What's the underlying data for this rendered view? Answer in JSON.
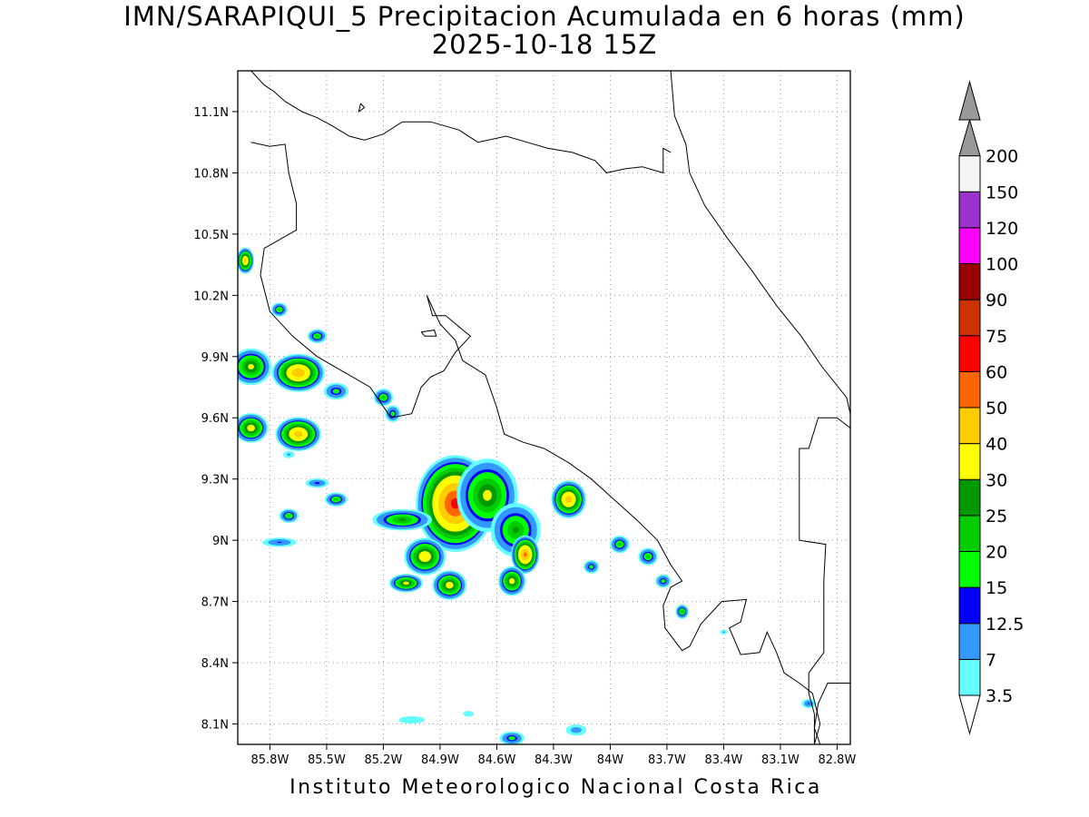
{
  "title": {
    "line1": "IMN/SARAPIQUI_5 Precipitacion Acumulada en 6 horas (mm)",
    "line2": "2025-10-18 15Z"
  },
  "footer": "Instituto Meteorologico Nacional Costa Rica",
  "axes": {
    "x_ticks": [
      "85.8W",
      "85.5W",
      "85.2W",
      "84.9W",
      "84.6W",
      "84.3W",
      "84W",
      "83.7W",
      "83.4W",
      "83.1W",
      "82.8W"
    ],
    "y_ticks": [
      "11.1N",
      "10.8N",
      "10.5N",
      "10.2N",
      "9.9N",
      "9.6N",
      "9.3N",
      "9N",
      "8.7N",
      "8.4N",
      "8.1N"
    ],
    "lon_range": [
      -85.97,
      -82.73
    ],
    "lat_range": [
      8.0,
      11.3
    ],
    "grid": "dotted"
  },
  "colorbar": {
    "labels": [
      "3.5",
      "7",
      "12.5",
      "15",
      "20",
      "25",
      "30",
      "40",
      "50",
      "60",
      "75",
      "90",
      "100",
      "120",
      "150",
      "200"
    ],
    "colors": [
      "#66ffff",
      "#3399ff",
      "#0000ff",
      "#00ff00",
      "#00cc00",
      "#009900",
      "#ffff00",
      "#ffcc00",
      "#ff6600",
      "#ff0000",
      "#cc3300",
      "#990000",
      "#ff00ff",
      "#9933cc",
      "#f5f5f5",
      "#999999"
    ],
    "units": "mm"
  },
  "precip_cells": [
    {
      "lon": -84.82,
      "lat": 9.18,
      "rx": 0.22,
      "ry": 0.25,
      "peak": 62
    },
    {
      "lon": -84.65,
      "lat": 9.22,
      "rx": 0.18,
      "ry": 0.2,
      "peak": 32
    },
    {
      "lon": -84.5,
      "lat": 9.05,
      "rx": 0.15,
      "ry": 0.15,
      "peak": 26
    },
    {
      "lon": -84.45,
      "lat": 8.93,
      "rx": 0.08,
      "ry": 0.1,
      "peak": 52
    },
    {
      "lon": -84.22,
      "lat": 9.2,
      "rx": 0.1,
      "ry": 0.1,
      "peak": 45
    },
    {
      "lon": -85.1,
      "lat": 9.1,
      "rx": 0.18,
      "ry": 0.06,
      "peak": 26
    },
    {
      "lon": -84.98,
      "lat": 8.92,
      "rx": 0.12,
      "ry": 0.1,
      "peak": 38
    },
    {
      "lon": -84.85,
      "lat": 8.78,
      "rx": 0.1,
      "ry": 0.08,
      "peak": 35
    },
    {
      "lon": -85.08,
      "lat": 8.79,
      "rx": 0.1,
      "ry": 0.05,
      "peak": 33
    },
    {
      "lon": -84.52,
      "lat": 8.8,
      "rx": 0.08,
      "ry": 0.08,
      "peak": 34
    },
    {
      "lon": -85.65,
      "lat": 9.82,
      "rx": 0.15,
      "ry": 0.1,
      "peak": 48
    },
    {
      "lon": -85.9,
      "lat": 9.85,
      "rx": 0.12,
      "ry": 0.1,
      "peak": 32
    },
    {
      "lon": -85.65,
      "lat": 9.52,
      "rx": 0.13,
      "ry": 0.09,
      "peak": 45
    },
    {
      "lon": -85.9,
      "lat": 9.55,
      "rx": 0.1,
      "ry": 0.08,
      "peak": 35
    },
    {
      "lon": -85.93,
      "lat": 10.37,
      "rx": 0.05,
      "ry": 0.07,
      "peak": 42
    },
    {
      "lon": -85.75,
      "lat": 10.13,
      "rx": 0.05,
      "ry": 0.04,
      "peak": 22
    },
    {
      "lon": -85.55,
      "lat": 10.0,
      "rx": 0.06,
      "ry": 0.04,
      "peak": 22
    },
    {
      "lon": -85.45,
      "lat": 9.73,
      "rx": 0.08,
      "ry": 0.05,
      "peak": 18
    },
    {
      "lon": -85.2,
      "lat": 9.7,
      "rx": 0.06,
      "ry": 0.05,
      "peak": 22
    },
    {
      "lon": -85.15,
      "lat": 9.62,
      "rx": 0.05,
      "ry": 0.05,
      "peak": 18
    },
    {
      "lon": -85.45,
      "lat": 9.2,
      "rx": 0.07,
      "ry": 0.04,
      "peak": 22
    },
    {
      "lon": -85.7,
      "lat": 9.12,
      "rx": 0.06,
      "ry": 0.04,
      "peak": 22
    },
    {
      "lon": -85.55,
      "lat": 9.28,
      "rx": 0.08,
      "ry": 0.03,
      "peak": 14
    },
    {
      "lon": -85.75,
      "lat": 8.99,
      "rx": 0.12,
      "ry": 0.03,
      "peak": 13
    },
    {
      "lon": -83.95,
      "lat": 8.98,
      "rx": 0.06,
      "ry": 0.05,
      "peak": 22
    },
    {
      "lon": -84.1,
      "lat": 8.87,
      "rx": 0.05,
      "ry": 0.04,
      "peak": 18
    },
    {
      "lon": -83.8,
      "lat": 8.92,
      "rx": 0.06,
      "ry": 0.05,
      "peak": 22
    },
    {
      "lon": -83.72,
      "lat": 8.8,
      "rx": 0.05,
      "ry": 0.04,
      "peak": 18
    },
    {
      "lon": -83.62,
      "lat": 8.65,
      "rx": 0.04,
      "ry": 0.04,
      "peak": 24
    },
    {
      "lon": -83.4,
      "lat": 8.55,
      "rx": 0.03,
      "ry": 0.02,
      "peak": 8
    },
    {
      "lon": -82.95,
      "lat": 8.2,
      "rx": 0.05,
      "ry": 0.03,
      "peak": 13
    },
    {
      "lon": -84.18,
      "lat": 8.07,
      "rx": 0.08,
      "ry": 0.04,
      "peak": 10
    },
    {
      "lon": -85.05,
      "lat": 8.12,
      "rx": 0.15,
      "ry": 0.04,
      "peak": 6
    },
    {
      "lon": -84.75,
      "lat": 8.15,
      "rx": 0.08,
      "ry": 0.04,
      "peak": 5
    },
    {
      "lon": -84.52,
      "lat": 8.03,
      "rx": 0.08,
      "ry": 0.04,
      "peak": 18
    },
    {
      "lon": -85.7,
      "lat": 9.42,
      "rx": 0.05,
      "ry": 0.03,
      "peak": 8
    }
  ],
  "coastline_lonlat": [
    [
      [
        -85.9,
        11.3
      ],
      [
        -85.83,
        11.23
      ],
      [
        -85.78,
        11.2
      ],
      [
        -85.72,
        11.15
      ],
      [
        -85.63,
        11.1
      ],
      [
        -85.55,
        11.07
      ],
      [
        -85.47,
        11.03
      ],
      [
        -85.38,
        10.98
      ],
      [
        -85.3,
        10.96
      ],
      [
        -85.2,
        10.99
      ],
      [
        -85.1,
        11.05
      ],
      [
        -84.95,
        11.05
      ],
      [
        -84.8,
        11.01
      ],
      [
        -84.7,
        10.95
      ],
      [
        -84.55,
        10.98
      ],
      [
        -84.44,
        10.95
      ],
      [
        -84.33,
        10.92
      ],
      [
        -84.2,
        10.9
      ],
      [
        -84.08,
        10.86
      ],
      [
        -84.02,
        10.8
      ],
      [
        -83.92,
        10.82
      ],
      [
        -83.83,
        10.83
      ],
      [
        -83.72,
        10.8
      ],
      [
        -83.72,
        10.92
      ],
      [
        -83.68,
        10.9
      ]
    ],
    [
      [
        -83.68,
        11.3
      ],
      [
        -83.66,
        11.08
      ],
      [
        -83.6,
        10.94
      ],
      [
        -83.58,
        10.8
      ],
      [
        -83.5,
        10.64
      ],
      [
        -83.38,
        10.48
      ],
      [
        -83.25,
        10.32
      ],
      [
        -83.12,
        10.15
      ],
      [
        -82.99,
        10.0
      ],
      [
        -82.88,
        9.85
      ],
      [
        -82.75,
        9.7
      ],
      [
        -82.73,
        9.62
      ]
    ],
    [
      [
        -82.73,
        9.55
      ],
      [
        -82.8,
        9.6
      ],
      [
        -82.9,
        9.6
      ],
      [
        -82.95,
        9.45
      ],
      [
        -83.0,
        9.45
      ],
      [
        -83.0,
        9.0
      ],
      [
        -82.86,
        8.98
      ],
      [
        -82.87,
        8.8
      ],
      [
        -82.87,
        8.45
      ],
      [
        -82.95,
        8.35
      ],
      [
        -82.95,
        8.25
      ],
      [
        -82.92,
        8.15
      ],
      [
        -82.92,
        8.0
      ]
    ],
    [
      [
        -82.73,
        8.3
      ],
      [
        -82.85,
        8.3
      ],
      [
        -82.9,
        8.2
      ],
      [
        -82.92,
        8.08
      ],
      [
        -82.89,
        8.0
      ]
    ],
    [
      [
        -85.9,
        10.95
      ],
      [
        -85.8,
        10.93
      ],
      [
        -85.72,
        10.94
      ],
      [
        -85.7,
        10.8
      ],
      [
        -85.66,
        10.65
      ],
      [
        -85.66,
        10.52
      ],
      [
        -85.83,
        10.43
      ],
      [
        -85.85,
        10.3
      ],
      [
        -85.8,
        10.12
      ],
      [
        -85.68,
        10.0
      ],
      [
        -85.55,
        9.9
      ],
      [
        -85.4,
        9.82
      ],
      [
        -85.27,
        9.75
      ],
      [
        -85.16,
        9.6
      ],
      [
        -85.05,
        9.62
      ],
      [
        -85.0,
        9.75
      ],
      [
        -84.95,
        9.8
      ],
      [
        -84.88,
        9.83
      ],
      [
        -84.82,
        9.92
      ],
      [
        -84.74,
        10.0
      ],
      [
        -84.87,
        10.1
      ],
      [
        -84.94,
        10.1
      ],
      [
        -84.97,
        10.2
      ],
      [
        -84.9,
        10.06
      ],
      [
        -84.82,
        9.98
      ],
      [
        -84.78,
        9.88
      ],
      [
        -84.66,
        9.81
      ],
      [
        -84.6,
        9.65
      ],
      [
        -84.56,
        9.52
      ],
      [
        -84.46,
        9.48
      ],
      [
        -84.35,
        9.45
      ],
      [
        -84.22,
        9.38
      ],
      [
        -84.1,
        9.3
      ],
      [
        -83.98,
        9.2
      ],
      [
        -83.86,
        9.1
      ],
      [
        -83.75,
        9.0
      ],
      [
        -83.68,
        8.88
      ],
      [
        -83.62,
        8.8
      ],
      [
        -83.68,
        8.77
      ],
      [
        -83.72,
        8.68
      ],
      [
        -83.71,
        8.57
      ],
      [
        -83.62,
        8.46
      ],
      [
        -83.58,
        8.48
      ],
      [
        -83.52,
        8.59
      ],
      [
        -83.41,
        8.7
      ],
      [
        -83.28,
        8.71
      ],
      [
        -83.31,
        8.6
      ],
      [
        -83.37,
        8.57
      ],
      [
        -83.31,
        8.44
      ],
      [
        -83.21,
        8.45
      ],
      [
        -83.17,
        8.55
      ],
      [
        -83.12,
        8.45
      ],
      [
        -83.08,
        8.35
      ],
      [
        -83.0,
        8.3
      ],
      [
        -82.93,
        8.25
      ],
      [
        -82.89,
        8.1
      ],
      [
        -82.92,
        8.0
      ]
    ],
    [
      [
        -85.32,
        11.14
      ],
      [
        -85.3,
        11.12
      ],
      [
        -85.33,
        11.1
      ],
      [
        -85.32,
        11.14
      ]
    ],
    [
      [
        -85.0,
        10.02
      ],
      [
        -84.93,
        10.03
      ],
      [
        -84.92,
        10.0
      ],
      [
        -84.98,
        10.0
      ],
      [
        -85.0,
        10.02
      ]
    ]
  ]
}
